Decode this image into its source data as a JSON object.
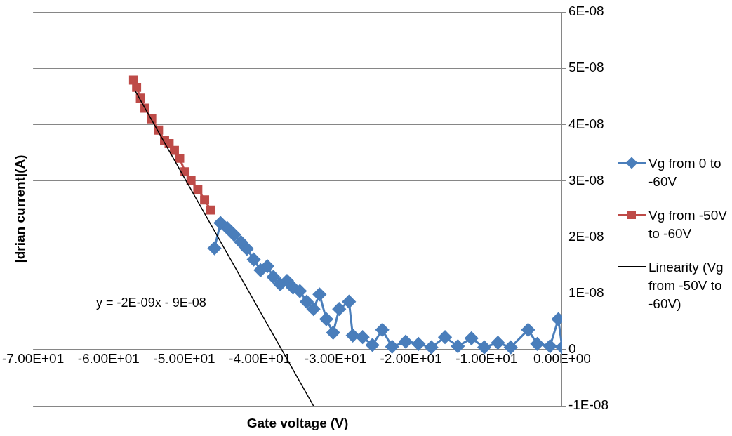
{
  "chart_data": {
    "type": "line",
    "xlabel": "Gate voltage (V)",
    "ylabel": "|drian current|(A)",
    "xlim": [
      -70,
      0
    ],
    "ylim": [
      -1e-08,
      6e-08
    ],
    "xticks": [
      {
        "value": -70,
        "label": "-7.00E+01"
      },
      {
        "value": -60,
        "label": "-6.00E+01"
      },
      {
        "value": -50,
        "label": "-5.00E+01"
      },
      {
        "value": -40,
        "label": "-4.00E+01"
      },
      {
        "value": -30,
        "label": "-3.00E+01"
      },
      {
        "value": -20,
        "label": "-2.00E+01"
      },
      {
        "value": -10,
        "label": "-1.00E+01"
      },
      {
        "value": 0,
        "label": "0.00E+00"
      }
    ],
    "yticks": [
      {
        "value": -1e-08,
        "label": "-1E-08"
      },
      0,
      {
        "value": 1e-08,
        "label": "1E-08"
      },
      {
        "value": 2e-08,
        "label": "2E-08"
      },
      {
        "value": 3e-08,
        "label": "3E-08"
      },
      {
        "value": 4e-08,
        "label": "4E-08"
      },
      {
        "value": 5e-08,
        "label": "5E-08"
      },
      {
        "value": 6e-08,
        "label": "6E-08"
      }
    ],
    "grid": "y",
    "legend": "right",
    "annotations": [
      "y = -2E-09x - 9E-08"
    ],
    "series": [
      {
        "name": "Vg from 0 to -60V",
        "color": "#4a7ebb",
        "marker": "diamond",
        "x": [
          0.0,
          -0.5,
          -1.6,
          -3.3,
          -4.5,
          -6.8,
          -8.5,
          -10.3,
          -12.0,
          -13.8,
          -15.5,
          -17.3,
          -19.0,
          -20.7,
          -22.5,
          -23.8,
          -25.1,
          -26.4,
          -27.7,
          -28.2,
          -29.5,
          -30.3,
          -31.2,
          -32.1,
          -32.9,
          -33.8,
          -34.7,
          -35.6,
          -36.4,
          -37.3,
          -38.2,
          -39.0,
          -39.9,
          -40.8,
          -41.7,
          -42.5,
          -43.4,
          -44.3,
          -45.2,
          -46.0
        ],
        "values": [
          4e-10,
          5.4e-09,
          6e-10,
          1e-09,
          3.5e-09,
          4e-10,
          1.2e-09,
          4e-10,
          2e-09,
          6e-10,
          2.2e-09,
          4e-10,
          1e-09,
          1.4e-09,
          5e-10,
          3.5e-09,
          8e-10,
          2.2e-09,
          2.5e-09,
          8.5e-09,
          7.2e-09,
          3e-09,
          5.4e-09,
          9.8e-09,
          7.2e-09,
          8.5e-09,
          1.04e-08,
          1.1e-08,
          1.22e-08,
          1.16e-08,
          1.29e-08,
          1.48e-08,
          1.41e-08,
          1.6e-08,
          1.79e-08,
          1.91e-08,
          2.04e-08,
          2.16e-08,
          2.25e-08,
          1.8e-08
        ]
      },
      {
        "name": "Vg from -50V to -60V",
        "color": "#be4b48",
        "marker": "square",
        "x": [
          -46.5,
          -47.3,
          -48.2,
          -49.1,
          -49.9,
          -50.6,
          -51.3,
          -52.0,
          -52.6,
          -53.4,
          -54.3,
          -55.2,
          -55.8,
          -56.3,
          -56.7
        ],
        "values": [
          2.48e-08,
          2.66e-08,
          2.85e-08,
          3e-08,
          3.16e-08,
          3.4e-08,
          3.54e-08,
          3.66e-08,
          3.72e-08,
          3.9e-08,
          4.1e-08,
          4.29e-08,
          4.47e-08,
          4.66e-08,
          4.79e-08
        ]
      },
      {
        "name": "Linearity (Vg from -50V to -60V)",
        "color": "#000000",
        "marker": "none",
        "x": [
          -56.5,
          -32.9
        ],
        "values": [
          4.6e-08,
          -1e-08
        ]
      }
    ]
  }
}
